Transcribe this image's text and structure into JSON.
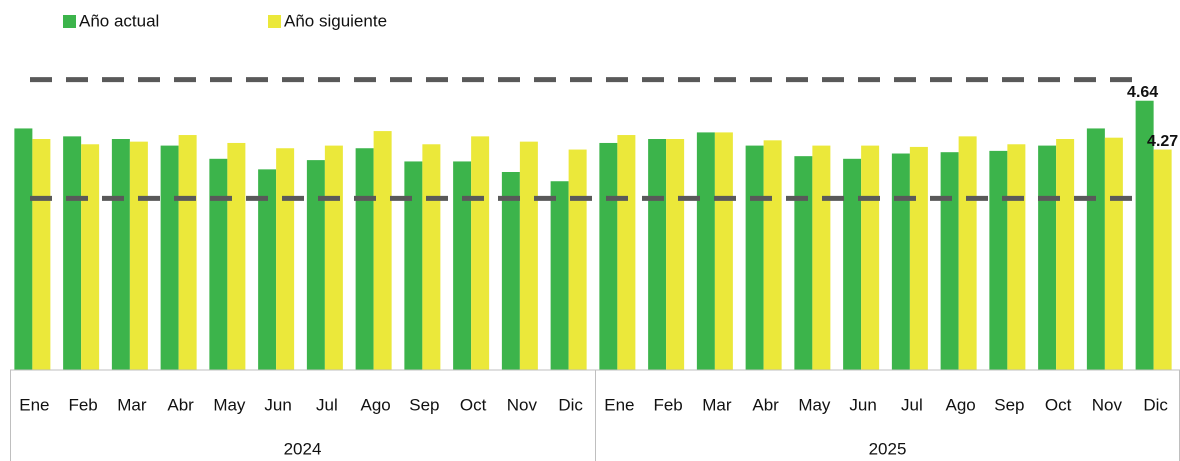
{
  "chart_data": {
    "type": "bar",
    "legend": "top-left",
    "ylim": [
      2.6,
      5.1
    ],
    "reference_lines": [
      4.8,
      3.9
    ],
    "reference_color": "#595959",
    "category_groups": [
      {
        "name": "2024",
        "categories": [
          "Ene",
          "Feb",
          "Mar",
          "Abr",
          "May",
          "Jun",
          "Jul",
          "Ago",
          "Sep",
          "Oct",
          "Nov",
          "Dic"
        ]
      },
      {
        "name": "2025",
        "categories": [
          "Ene",
          "Feb",
          "Mar",
          "Abr",
          "May",
          "Jun",
          "Jul",
          "Ago",
          "Sep",
          "Oct",
          "Nov",
          "Dic"
        ]
      }
    ],
    "series": [
      {
        "name": "Año actual",
        "color": "#3cb44b",
        "values": [
          4.43,
          4.37,
          4.35,
          4.3,
          4.2,
          4.12,
          4.19,
          4.28,
          4.18,
          4.18,
          4.1,
          4.03,
          4.32,
          4.35,
          4.4,
          4.3,
          4.22,
          4.2,
          4.24,
          4.25,
          4.26,
          4.3,
          4.43,
          4.64
        ],
        "value_labels": [
          null,
          null,
          null,
          null,
          null,
          null,
          null,
          null,
          null,
          null,
          null,
          null,
          null,
          null,
          null,
          null,
          null,
          null,
          null,
          null,
          null,
          null,
          null,
          "4.64"
        ]
      },
      {
        "name": "Año siguiente",
        "color": "#ebe83a",
        "values": [
          4.35,
          4.31,
          4.33,
          4.38,
          4.32,
          4.28,
          4.3,
          4.41,
          4.31,
          4.37,
          4.33,
          4.27,
          4.38,
          4.35,
          4.4,
          4.34,
          4.3,
          4.3,
          4.29,
          4.37,
          4.31,
          4.35,
          4.36,
          4.27
        ],
        "value_labels": [
          null,
          null,
          null,
          null,
          null,
          null,
          null,
          null,
          null,
          null,
          null,
          null,
          null,
          null,
          null,
          null,
          null,
          null,
          null,
          null,
          null,
          null,
          null,
          "4.27"
        ]
      }
    ]
  }
}
